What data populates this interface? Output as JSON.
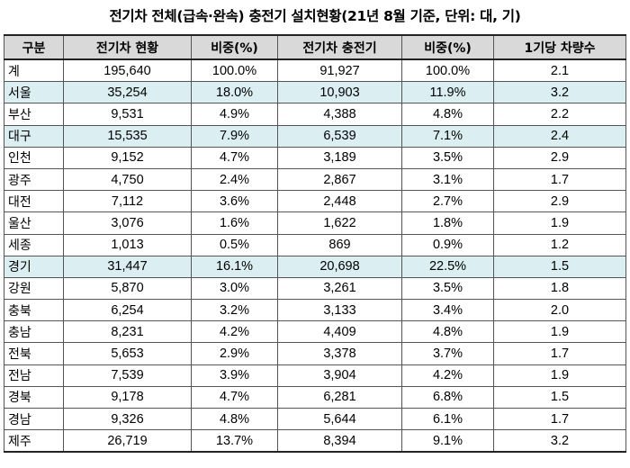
{
  "title": "전기차 전체(급속·완속) 충전기 설치현황(21년 8월 기준, 단위: 대, 기)",
  "headers": [
    "구분",
    "전기차 현황",
    "비중(%)",
    "전기차 충전기",
    "비중(%)",
    "1기당 차량수"
  ],
  "highlight_color": "#dbeef1",
  "rows": [
    {
      "region": "계",
      "ev": "195,640",
      "ev_share": "100.0%",
      "chargers": "91,927",
      "charger_share": "100.0%",
      "per_charger": "2.1",
      "highlight": false
    },
    {
      "region": "서울",
      "ev": "35,254",
      "ev_share": "18.0%",
      "chargers": "10,903",
      "charger_share": "11.9%",
      "per_charger": "3.2",
      "highlight": true
    },
    {
      "region": "부산",
      "ev": "9,531",
      "ev_share": "4.9%",
      "chargers": "4,388",
      "charger_share": "4.8%",
      "per_charger": "2.2",
      "highlight": false
    },
    {
      "region": "대구",
      "ev": "15,535",
      "ev_share": "7.9%",
      "chargers": "6,539",
      "charger_share": "7.1%",
      "per_charger": "2.4",
      "highlight": true
    },
    {
      "region": "인천",
      "ev": "9,152",
      "ev_share": "4.7%",
      "chargers": "3,189",
      "charger_share": "3.5%",
      "per_charger": "2.9",
      "highlight": false
    },
    {
      "region": "광주",
      "ev": "4,750",
      "ev_share": "2.4%",
      "chargers": "2,867",
      "charger_share": "3.1%",
      "per_charger": "1.7",
      "highlight": false
    },
    {
      "region": "대전",
      "ev": "7,112",
      "ev_share": "3.6%",
      "chargers": "2,448",
      "charger_share": "2.7%",
      "per_charger": "2.9",
      "highlight": false
    },
    {
      "region": "울산",
      "ev": "3,076",
      "ev_share": "1.6%",
      "chargers": "1,622",
      "charger_share": "1.8%",
      "per_charger": "1.9",
      "highlight": false
    },
    {
      "region": "세종",
      "ev": "1,013",
      "ev_share": "0.5%",
      "chargers": "869",
      "charger_share": "0.9%",
      "per_charger": "1.2",
      "highlight": false
    },
    {
      "region": "경기",
      "ev": "31,447",
      "ev_share": "16.1%",
      "chargers": "20,698",
      "charger_share": "22.5%",
      "per_charger": "1.5",
      "highlight": true
    },
    {
      "region": "강원",
      "ev": "5,870",
      "ev_share": "3.0%",
      "chargers": "3,261",
      "charger_share": "3.5%",
      "per_charger": "1.8",
      "highlight": false
    },
    {
      "region": "충북",
      "ev": "6,254",
      "ev_share": "3.2%",
      "chargers": "3,133",
      "charger_share": "3.4%",
      "per_charger": "2.0",
      "highlight": false
    },
    {
      "region": "충남",
      "ev": "8,231",
      "ev_share": "4.2%",
      "chargers": "4,409",
      "charger_share": "4.8%",
      "per_charger": "1.9",
      "highlight": false
    },
    {
      "region": "전북",
      "ev": "5,653",
      "ev_share": "2.9%",
      "chargers": "3,378",
      "charger_share": "3.7%",
      "per_charger": "1.7",
      "highlight": false
    },
    {
      "region": "전남",
      "ev": "7,539",
      "ev_share": "3.9%",
      "chargers": "3,904",
      "charger_share": "4.2%",
      "per_charger": "1.9",
      "highlight": false
    },
    {
      "region": "경북",
      "ev": "9,178",
      "ev_share": "4.7%",
      "chargers": "6,281",
      "charger_share": "6.8%",
      "per_charger": "1.5",
      "highlight": false
    },
    {
      "region": "경남",
      "ev": "9,326",
      "ev_share": "4.8%",
      "chargers": "5,644",
      "charger_share": "6.1%",
      "per_charger": "1.7",
      "highlight": false
    },
    {
      "region": "제주",
      "ev": "26,719",
      "ev_share": "13.7%",
      "chargers": "8,394",
      "charger_share": "9.1%",
      "per_charger": "3.2",
      "highlight": false
    }
  ]
}
